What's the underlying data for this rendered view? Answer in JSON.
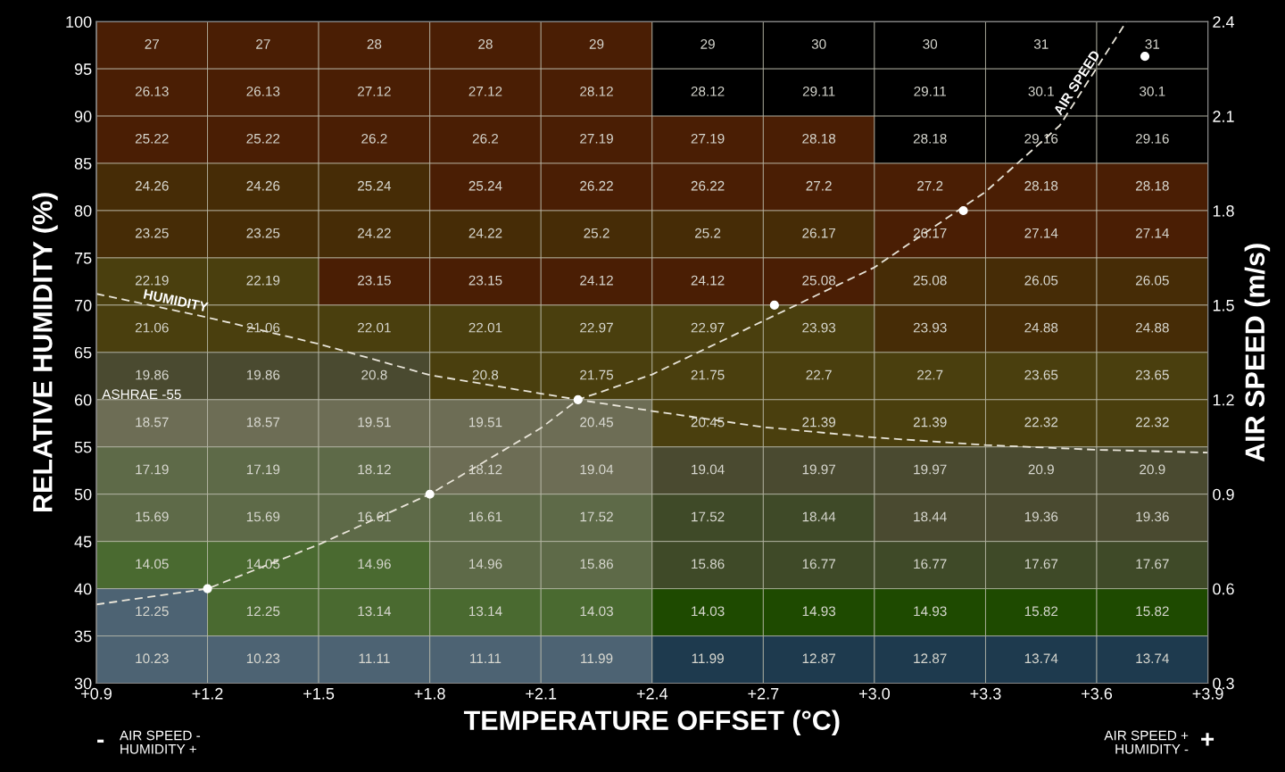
{
  "chart_data": {
    "type": "heatmap",
    "xlabel": "TEMPERATURE OFFSET (°C)",
    "ylabel": "RELATIVE HUMIDITY (%)",
    "y2label": "AIR SPEED (m/s)",
    "xlim": [
      0.9,
      3.9
    ],
    "xticks": [
      {
        "value": 0.9,
        "label": "+0.9"
      },
      {
        "value": 1.2,
        "label": "+1.2"
      },
      {
        "value": 1.5,
        "label": "+1.5"
      },
      {
        "value": 1.8,
        "label": "+1.8"
      },
      {
        "value": 2.1,
        "label": "+2.1"
      },
      {
        "value": 2.4,
        "label": "+2.4"
      },
      {
        "value": 2.7,
        "label": "+2.7"
      },
      {
        "value": 3.0,
        "label": "+3.0"
      },
      {
        "value": 3.3,
        "label": "+3.3"
      },
      {
        "value": 3.6,
        "label": "+3.6"
      },
      {
        "value": 3.9,
        "label": "+3.9"
      }
    ],
    "ylim": [
      30,
      100
    ],
    "yticks": [
      30,
      35,
      40,
      45,
      50,
      55,
      60,
      65,
      70,
      75,
      80,
      85,
      90,
      95,
      100
    ],
    "y2lim": [
      0.3,
      2.4
    ],
    "y2ticks": [
      0.3,
      0.6,
      0.9,
      1.2,
      1.5,
      1.8,
      2.1,
      2.4
    ],
    "data_labels": true,
    "cells": [
      [
        27,
        27,
        28,
        28,
        29,
        29,
        30,
        30,
        31,
        31
      ],
      [
        26.13,
        26.13,
        27.12,
        27.12,
        28.12,
        28.12,
        29.11,
        29.11,
        30.1,
        30.1
      ],
      [
        25.22,
        25.22,
        26.2,
        26.2,
        27.19,
        27.19,
        28.18,
        28.18,
        29.16,
        29.16
      ],
      [
        24.26,
        24.26,
        25.24,
        25.24,
        26.22,
        26.22,
        27.2,
        27.2,
        28.18,
        28.18
      ],
      [
        23.25,
        23.25,
        24.22,
        24.22,
        25.2,
        25.2,
        26.17,
        26.17,
        27.14,
        27.14
      ],
      [
        22.19,
        22.19,
        23.15,
        23.15,
        24.12,
        24.12,
        25.08,
        25.08,
        26.05,
        26.05
      ],
      [
        21.06,
        21.06,
        22.01,
        22.01,
        22.97,
        22.97,
        23.93,
        23.93,
        24.88,
        24.88
      ],
      [
        19.86,
        19.86,
        20.8,
        20.8,
        21.75,
        21.75,
        22.7,
        22.7,
        23.65,
        23.65
      ],
      [
        18.57,
        18.57,
        19.51,
        19.51,
        20.45,
        20.45,
        21.39,
        21.39,
        22.32,
        22.32
      ],
      [
        17.19,
        17.19,
        18.12,
        18.12,
        19.04,
        19.04,
        19.97,
        19.97,
        20.9,
        20.9
      ],
      [
        15.69,
        15.69,
        16.61,
        16.61,
        17.52,
        17.52,
        18.44,
        18.44,
        19.36,
        19.36
      ],
      [
        14.05,
        14.05,
        14.96,
        14.96,
        15.86,
        15.86,
        16.77,
        16.77,
        17.67,
        17.67
      ],
      [
        12.25,
        12.25,
        13.14,
        13.14,
        14.03,
        14.03,
        14.93,
        14.93,
        15.82,
        15.82
      ],
      [
        10.23,
        10.23,
        11.11,
        11.11,
        11.99,
        11.99,
        12.87,
        12.87,
        13.74,
        13.74
      ]
    ],
    "colors": [
      [
        "#4a1e04",
        "#4a1e04",
        "#4a1e04",
        "#4a1e04",
        "#4a1e04",
        "#000000",
        "#000000",
        "#000000",
        "#000000",
        "#000000"
      ],
      [
        "#4a1e04",
        "#4a1e04",
        "#4a1e04",
        "#4a1e04",
        "#4a1e04",
        "#000000",
        "#000000",
        "#000000",
        "#000000",
        "#000000"
      ],
      [
        "#4a1e04",
        "#4a1e04",
        "#4a1e04",
        "#4a1e04",
        "#4a1e04",
        "#4a1e04",
        "#4a1e04",
        "#000000",
        "#000000",
        "#000000"
      ],
      [
        "#462c06",
        "#462c06",
        "#462c06",
        "#4a1e04",
        "#4a1e04",
        "#4a1e04",
        "#4a1e04",
        "#4a1e04",
        "#4a1e04",
        "#4a1e04"
      ],
      [
        "#462c06",
        "#462c06",
        "#462c06",
        "#462c06",
        "#462c06",
        "#462c06",
        "#462c06",
        "#4a1e04",
        "#4a1e04",
        "#4a1e04"
      ],
      [
        "#4a3f0e",
        "#4a3f0e",
        "#4a1e04",
        "#4a1e04",
        "#4a1e04",
        "#4a1e04",
        "#4a1e04",
        "#462c06",
        "#462c06",
        "#462c06"
      ],
      [
        "#4a3f0e",
        "#4a3f0e",
        "#4a3f0e",
        "#4a3f0e",
        "#4a3f0e",
        "#4a3f0e",
        "#4a3f0e",
        "#462c06",
        "#462c06",
        "#462c06"
      ],
      [
        "#4a4a30",
        "#4a4a30",
        "#4a4a30",
        "#4a3f0e",
        "#4a3f0e",
        "#4a3f0e",
        "#4a3f0e",
        "#4a3f0e",
        "#4a3f0e",
        "#4a3f0e"
      ],
      [
        "#6d6d55",
        "#6d6d55",
        "#6d6d55",
        "#6d6d55",
        "#6d6d55",
        "#4a3f0e",
        "#4a3f0e",
        "#4a3f0e",
        "#4a3f0e",
        "#4a3f0e"
      ],
      [
        "#5e6a48",
        "#5e6a48",
        "#5e6a48",
        "#6d6d55",
        "#6d6d55",
        "#4a4a30",
        "#4a4a30",
        "#4a4a30",
        "#4a4a30",
        "#4a4a30"
      ],
      [
        "#5e6a48",
        "#5e6a48",
        "#5e6a48",
        "#5e6a48",
        "#5e6a48",
        "#3f4a28",
        "#3f4a28",
        "#4a4a30",
        "#4a4a30",
        "#4a4a30"
      ],
      [
        "#4a6a30",
        "#4a6a30",
        "#4a6a30",
        "#5e6a48",
        "#5e6a48",
        "#3f4a28",
        "#3f4a28",
        "#3f4a28",
        "#3f4a28",
        "#3f4a28"
      ],
      [
        "#4d6373",
        "#4a6a30",
        "#4a6a30",
        "#4a6a30",
        "#4a6a30",
        "#1e4a00",
        "#1e4a00",
        "#1e4a00",
        "#1e4a00",
        "#1e4a00"
      ],
      [
        "#4d6373",
        "#4d6373",
        "#4d6373",
        "#4d6373",
        "#4d6373",
        "#1e3a4e",
        "#1e3a4e",
        "#1e3a4e",
        "#1e3a4e",
        "#1e3a4e"
      ]
    ],
    "series": [
      {
        "name": "HUMIDITY",
        "type": "line",
        "color": "#e8e4d8",
        "line_style": "dashed",
        "x": [
          0.9,
          1.2,
          1.5,
          1.8,
          2.2,
          2.4,
          2.7,
          3.0,
          3.3,
          3.6,
          3.9
        ],
        "values": [
          71.2,
          68.7,
          65.9,
          62.6,
          60.0,
          58.8,
          57.1,
          56.0,
          55.2,
          54.7,
          54.4
        ],
        "value_labels": [
          null,
          null,
          null,
          null,
          null,
          null,
          null,
          null,
          null,
          null,
          null
        ]
      },
      {
        "name": "AIR SPEED",
        "type": "line",
        "axis": "y2",
        "color": "#e8e4d8",
        "line_style": "dashed",
        "x": [
          0.9,
          1.2,
          1.5,
          1.8,
          2.1,
          2.2,
          2.4,
          2.7,
          3.0,
          3.3,
          3.5,
          3.68
        ],
        "values": [
          0.55,
          0.6,
          0.74,
          0.9,
          1.11,
          1.2,
          1.28,
          1.45,
          1.62,
          1.86,
          2.07,
          2.4
        ],
        "value_labels": [
          null,
          null,
          null,
          null,
          null,
          null,
          null,
          null,
          null,
          null,
          null,
          null
        ]
      },
      {
        "type": "scatter",
        "axis": "y2",
        "color": "#ffffff",
        "marker": "circle",
        "x": [
          1.2,
          1.8,
          2.2,
          2.73,
          3.24,
          3.73
        ],
        "values": [
          0.6,
          0.9,
          1.2,
          1.5,
          1.8,
          2.29
        ],
        "value_labels": [
          null,
          null,
          null,
          null,
          null,
          null
        ]
      }
    ],
    "annotations": [
      "ASHRAE -55",
      "-",
      "AIR SPEED -\nHUMIDITY +",
      "AIR SPEED +\nHUMIDITY -",
      "+"
    ]
  }
}
